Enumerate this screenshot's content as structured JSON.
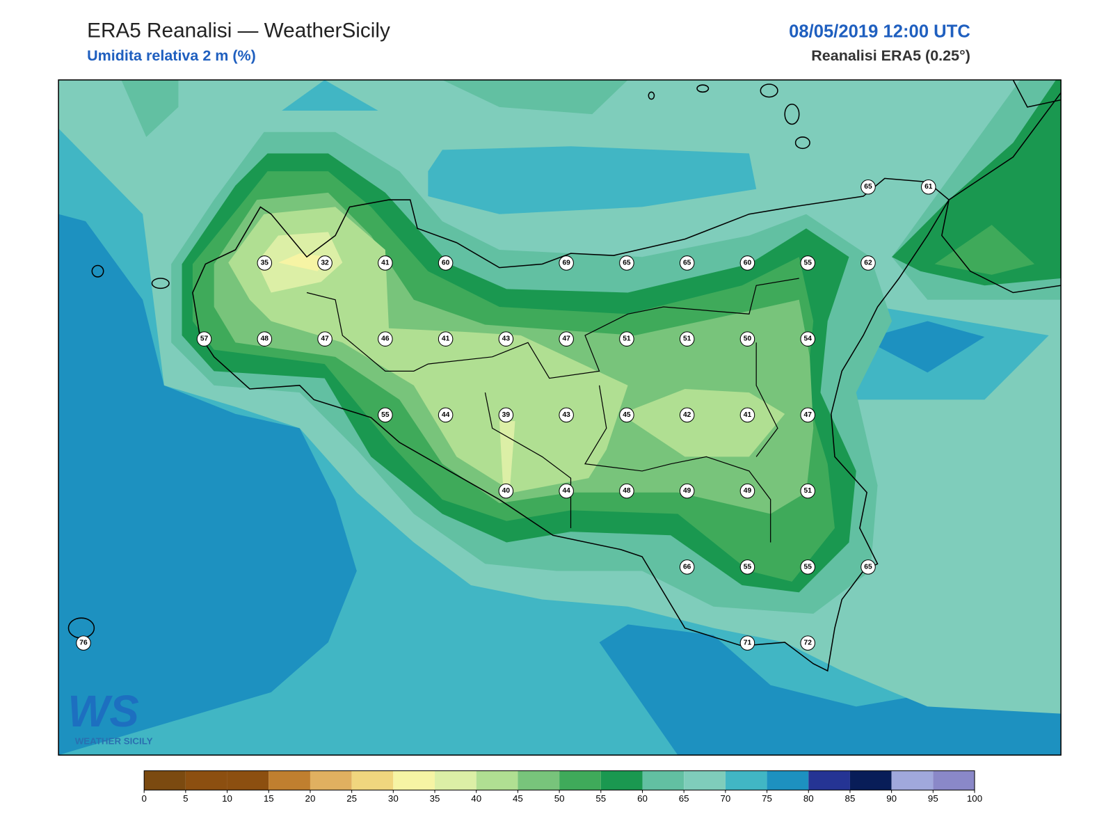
{
  "header": {
    "title": "ERA5 Reanalisi — WeatherSicily",
    "subtitle": "Umidita relativa 2 m (%)",
    "datetime": "08/05/2019 12:00 UTC",
    "source": "Reanalisi ERA5 (0.25°)"
  },
  "station_values": [
    65,
    61,
    35,
    32,
    41,
    60,
    69,
    65,
    65,
    60,
    55,
    62,
    57,
    48,
    47,
    46,
    41,
    43,
    47,
    51,
    51,
    50,
    54,
    55,
    44,
    39,
    43,
    45,
    42,
    41,
    47,
    40,
    44,
    48,
    49,
    49,
    51,
    66,
    55,
    55,
    65,
    76,
    71,
    72
  ],
  "logo": {
    "mark": "WS",
    "text": "WEATHER SICILY"
  },
  "colorbar": {
    "ticks": [
      0,
      5,
      10,
      15,
      20,
      25,
      30,
      35,
      40,
      45,
      50,
      55,
      60,
      65,
      70,
      75,
      80,
      85,
      90,
      95,
      100
    ],
    "colors": [
      "#7b4a10",
      "#8c4f10",
      "#8c4f10",
      "#c07f2f",
      "#e0b060",
      "#f0d67e",
      "#f6f4a4",
      "#dcefa6",
      "#b0df92",
      "#78c47b",
      "#3faa5a",
      "#1a9850",
      "#62c0a2",
      "#7fcdbb",
      "#41b6c4",
      "#1d91c0",
      "#253494",
      "#081d58",
      "#a0a8dc",
      "#8a88c8"
    ]
  }
}
